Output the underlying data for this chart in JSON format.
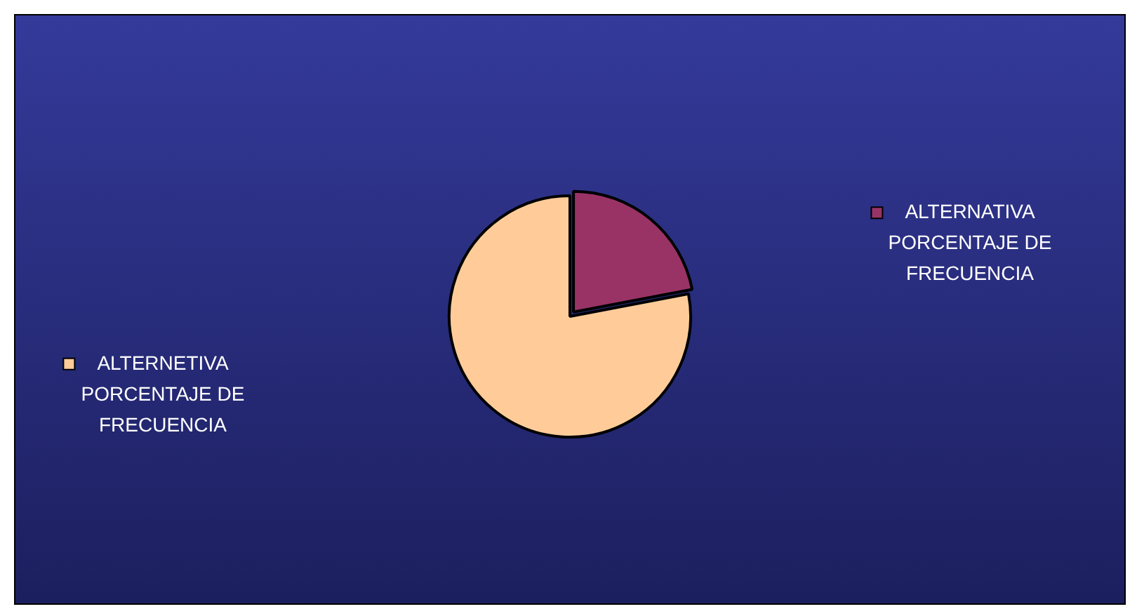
{
  "chart_data": {
    "type": "pie",
    "categories": [
      "ALTERNATIVA PORCENTAJE DE FRECUENCIA",
      "ALTERNETIVA PORCENTAJE DE FRECUENCIA"
    ],
    "values": [
      22,
      78
    ],
    "colors": [
      "#993366",
      "#ffcc99"
    ],
    "legend": "bottom left"
  }
}
